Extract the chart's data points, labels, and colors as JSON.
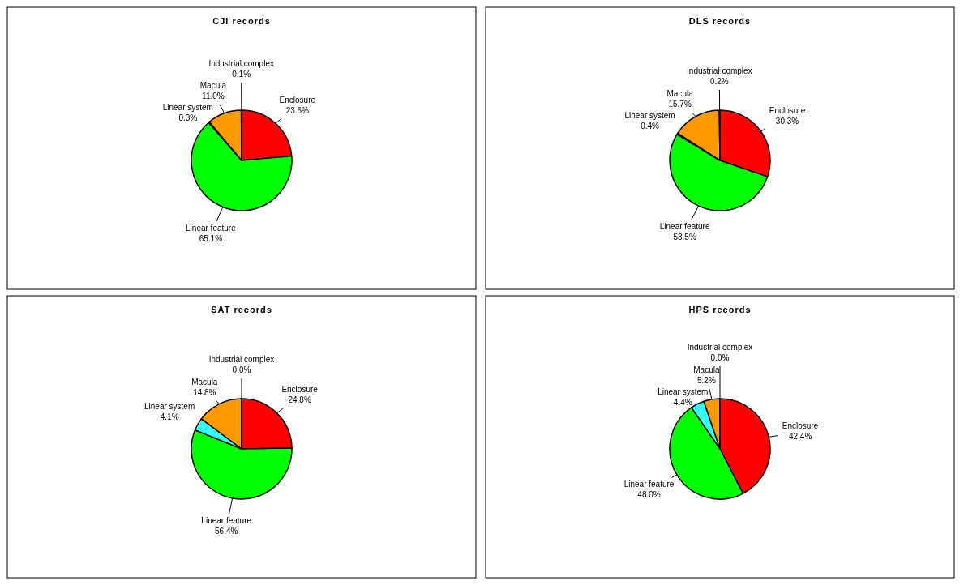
{
  "chart_data": [
    {
      "type": "pie",
      "title": "CJI records",
      "categories": [
        "Enclosure",
        "Linear feature",
        "Linear system",
        "Macula",
        "Industrial complex"
      ],
      "values": [
        23.6,
        65.1,
        0.3,
        11.0,
        0.1
      ],
      "value_labels": [
        "23.6%",
        "65.1%",
        "0.3%",
        "11.0%",
        "0.1%"
      ],
      "colors": [
        "#ff0000",
        "#00ff00",
        "#33ffff",
        "#ff9900",
        "#9999ff"
      ],
      "data_labels": true,
      "legend": false
    },
    {
      "type": "pie",
      "title": "DLS records",
      "categories": [
        "Enclosure",
        "Linear feature",
        "Linear system",
        "Macula",
        "Industrial complex"
      ],
      "values": [
        30.3,
        53.5,
        0.4,
        15.7,
        0.2
      ],
      "value_labels": [
        "30.3%",
        "53.5%",
        "0.4%",
        "15.7%",
        "0.2%"
      ],
      "colors": [
        "#ff0000",
        "#00ff00",
        "#33ffff",
        "#ff9900",
        "#9999ff"
      ],
      "data_labels": true,
      "legend": false
    },
    {
      "type": "pie",
      "title": "SAT records",
      "categories": [
        "Enclosure",
        "Linear feature",
        "Linear system",
        "Macula",
        "Industrial complex"
      ],
      "values": [
        24.8,
        56.4,
        4.1,
        14.8,
        0.0
      ],
      "value_labels": [
        "24.8%",
        "56.4%",
        "4.1%",
        "14.8%",
        "0.0%"
      ],
      "colors": [
        "#ff0000",
        "#00ff00",
        "#33ffff",
        "#ff9900",
        "#9999ff"
      ],
      "data_labels": true,
      "legend": false
    },
    {
      "type": "pie",
      "title": "HPS records",
      "categories": [
        "Enclosure",
        "Linear feature",
        "Linear system",
        "Macula",
        "Industrial complex"
      ],
      "values": [
        42.4,
        48.0,
        4.4,
        5.2,
        0.0
      ],
      "value_labels": [
        "42.4%",
        "48.0%",
        "4.4%",
        "5.2%",
        "0.0%"
      ],
      "colors": [
        "#ff0000",
        "#00ff00",
        "#33ffff",
        "#ff9900",
        "#9999ff"
      ],
      "data_labels": true,
      "legend": false
    }
  ]
}
